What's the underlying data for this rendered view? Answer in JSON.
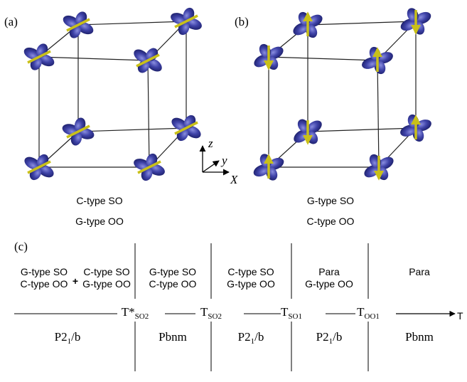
{
  "panels": [
    {
      "label": "(a)",
      "captions": [
        "C-type SO",
        "G-type OO"
      ]
    },
    {
      "label": "(b)",
      "captions": [
        "G-type SO",
        "C-type OO"
      ]
    }
  ],
  "axes": {
    "z": "z",
    "y": "y",
    "x": "X"
  },
  "phase_diagram": {
    "label": "(c)",
    "combine": "+",
    "columns": [
      [
        [
          "G-type SO",
          "C-type OO"
        ],
        [
          "C-type SO",
          "G-type OO"
        ]
      ],
      [
        [
          "G-type SO",
          "C-type OO"
        ]
      ],
      [
        [
          "C-type SO",
          "G-type OO"
        ]
      ],
      [
        [
          "Para",
          "G-type OO"
        ]
      ],
      [
        [
          "Para"
        ]
      ]
    ],
    "transitions": [
      {
        "symbol": "T*",
        "sub": "SO2"
      },
      {
        "symbol": "T",
        "sub": "SO2"
      },
      {
        "symbol": "T",
        "sub": "SO1"
      },
      {
        "symbol": "T",
        "sub": "OO1"
      }
    ],
    "axis": "T",
    "space_groups": [
      {
        "main": "P2",
        "sub": "1",
        "rest": "/b"
      },
      {
        "main": "Pbnm"
      },
      {
        "main": "P2",
        "sub": "1",
        "rest": "/b"
      },
      {
        "main": "P2",
        "sub": "1",
        "rest": "/b"
      },
      {
        "main": "Pbnm"
      }
    ]
  }
}
